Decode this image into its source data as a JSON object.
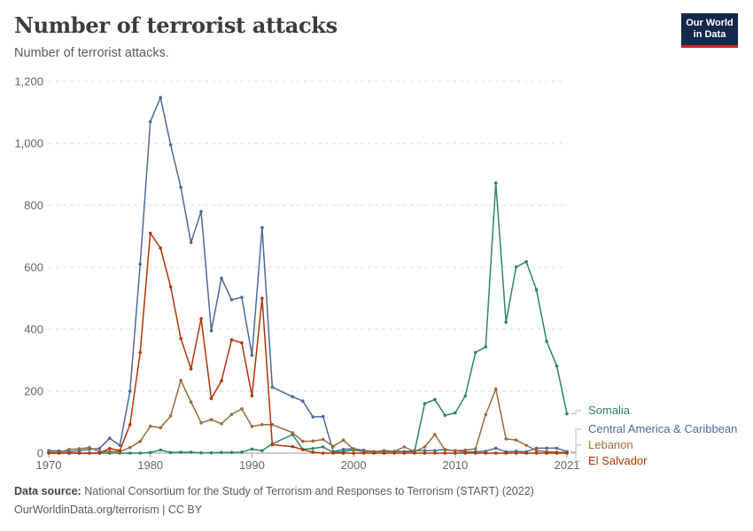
{
  "title": "Number of terrorist attacks",
  "subtitle": "Number of terrorist attacks.",
  "logo": {
    "line1": "Our World",
    "line2": "in Data"
  },
  "footer": {
    "source_label": "Data source:",
    "source_text": "National Consortium for the Study of Terrorism and Responses to Terrorism (START) (2022)",
    "link_text": "OurWorldinData.org/terrorism | CC BY"
  },
  "chart_data": {
    "type": "line",
    "title": "Number of terrorist attacks",
    "subtitle": "Number of terrorist attacks.",
    "xlabel": "",
    "ylabel": "",
    "xlim": [
      1970,
      2021
    ],
    "ylim": [
      0,
      1200
    ],
    "x_ticks": [
      {
        "value": 1970,
        "label": "1970"
      },
      {
        "value": 1980,
        "label": "1980"
      },
      {
        "value": 1990,
        "label": "1990"
      },
      {
        "value": 2000,
        "label": "2000"
      },
      {
        "value": 2010,
        "label": "2010"
      },
      {
        "value": 2021,
        "label": "2021"
      }
    ],
    "y_ticks": [
      {
        "value": 0,
        "label": "0"
      },
      {
        "value": 200,
        "label": "200"
      },
      {
        "value": 400,
        "label": "400"
      },
      {
        "value": 600,
        "label": "600"
      },
      {
        "value": 800,
        "label": "800"
      },
      {
        "value": 1000,
        "label": "1,000"
      },
      {
        "value": 1200,
        "label": "1,200"
      }
    ],
    "grid": "horizontal dashed",
    "legend": "right, end-of-line labels",
    "x": [
      1970,
      1971,
      1972,
      1973,
      1974,
      1975,
      1976,
      1977,
      1978,
      1979,
      1980,
      1981,
      1982,
      1983,
      1984,
      1985,
      1986,
      1987,
      1988,
      1989,
      1990,
      1991,
      1992,
      1994,
      1995,
      1996,
      1997,
      1998,
      1999,
      2000,
      2001,
      2002,
      2003,
      2004,
      2005,
      2006,
      2007,
      2008,
      2009,
      2010,
      2011,
      2012,
      2013,
      2014,
      2015,
      2016,
      2017,
      2018,
      2019,
      2020,
      2021
    ],
    "series": [
      {
        "name": "Somalia",
        "color": "#2d8466",
        "values": [
          0,
          0,
          0,
          0,
          0,
          0,
          0,
          0,
          0,
          0,
          2,
          10,
          2,
          3,
          3,
          1,
          1,
          2,
          2,
          3,
          13,
          8,
          30,
          60,
          12,
          15,
          20,
          2,
          5,
          10,
          5,
          5,
          5,
          5,
          5,
          5,
          160,
          173,
          122,
          130,
          185,
          325,
          343,
          872,
          423,
          601,
          618,
          527,
          361,
          281,
          127
        ]
      },
      {
        "name": "Central America & Caribbean",
        "color": "#4c6a9c",
        "values": [
          8,
          7,
          5,
          8,
          12,
          15,
          48,
          25,
          200,
          610,
          1070,
          1148,
          995,
          858,
          680,
          780,
          395,
          565,
          495,
          503,
          316,
          728,
          213,
          182,
          168,
          117,
          118,
          5,
          12,
          14,
          9,
          5,
          8,
          6,
          5,
          8,
          8,
          8,
          12,
          8,
          4,
          4,
          6,
          16,
          4,
          6,
          4,
          16,
          16,
          16,
          5
        ]
      },
      {
        "name": "Lebanon",
        "color": "#996d39",
        "values": [
          3,
          2,
          12,
          14,
          18,
          5,
          5,
          5,
          18,
          38,
          87,
          82,
          120,
          235,
          165,
          98,
          108,
          95,
          125,
          143,
          86,
          92,
          92,
          66,
          38,
          39,
          44,
          22,
          42,
          12,
          5,
          5,
          5,
          5,
          20,
          5,
          20,
          60,
          10,
          8,
          10,
          14,
          124,
          207,
          46,
          42,
          25,
          8,
          5,
          3,
          2
        ]
      },
      {
        "name": "El Salvador",
        "color": "#b13507",
        "values": [
          0,
          0,
          0,
          0,
          0,
          0,
          15,
          8,
          92,
          325,
          710,
          662,
          537,
          370,
          272,
          434,
          176,
          233,
          366,
          356,
          185,
          500,
          27,
          21,
          11,
          3,
          0,
          0,
          0,
          0,
          0,
          0,
          0,
          0,
          0,
          0,
          0,
          0,
          0,
          0,
          0,
          0,
          0,
          0,
          0,
          0,
          0,
          0,
          0,
          0,
          0
        ]
      }
    ]
  }
}
